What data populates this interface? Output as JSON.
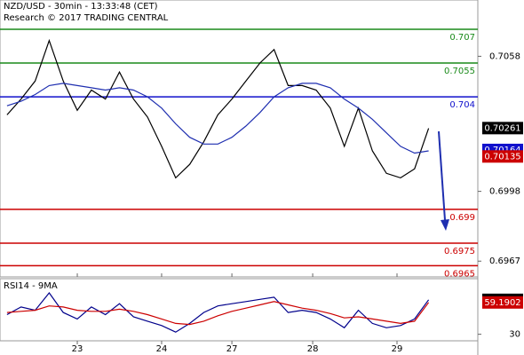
{
  "chart_data": {
    "type": "line",
    "title": "NZD/USD - 30min - 13:33:48 (CET)",
    "subtitle": "Research © 2017 TRADING CENTRAL",
    "xlim": [
      0,
      136
    ],
    "xticks": [
      {
        "value": 22,
        "label": "23"
      },
      {
        "value": 46,
        "label": "24"
      },
      {
        "value": 66,
        "label": "27"
      },
      {
        "value": 89,
        "label": "28"
      },
      {
        "value": 113,
        "label": "29"
      }
    ],
    "x": [
      2,
      6,
      10,
      14,
      18,
      22,
      26,
      30,
      34,
      38,
      42,
      46,
      50,
      54,
      58,
      62,
      66,
      70,
      74,
      78,
      82,
      86,
      90,
      94,
      98,
      102,
      106,
      110,
      114,
      118,
      122
    ],
    "ylim": [
      0.696,
      0.7083
    ],
    "yticks": [
      0.7058,
      0.6998,
      0.6967
    ],
    "series": [
      {
        "color": "#000000",
        "values": [
          0.7032,
          0.7039,
          0.7047,
          0.7065,
          0.7047,
          0.7034,
          0.7043,
          0.7039,
          0.7051,
          0.7039,
          0.7031,
          0.7018,
          0.7004,
          0.701,
          0.702,
          0.7032,
          0.7039,
          0.7047,
          0.7055,
          0.7061,
          0.7045,
          0.7045,
          0.7043,
          0.7035,
          0.7018,
          0.7035,
          0.7016,
          0.7006,
          0.7004,
          0.7008,
          0.7026
        ]
      },
      {
        "color": "#1f2fb0",
        "values": [
          0.7036,
          0.7038,
          0.7041,
          0.7045,
          0.7046,
          0.7045,
          0.7044,
          0.7043,
          0.7044,
          0.7043,
          0.704,
          0.7035,
          0.7028,
          0.7022,
          0.7019,
          0.7019,
          0.7022,
          0.7027,
          0.7033,
          0.704,
          0.7044,
          0.7046,
          0.7046,
          0.7044,
          0.7039,
          0.7035,
          0.703,
          0.7024,
          0.7018,
          0.7015,
          0.7016
        ]
      }
    ],
    "levels": [
      {
        "value": 0.707,
        "color": "#1a8a1a"
      },
      {
        "value": 0.7055,
        "color": "#1a8a1a"
      },
      {
        "value": 0.704,
        "color": "#1010cc"
      },
      {
        "value": 0.699,
        "color": "#cc0000"
      },
      {
        "value": 0.6975,
        "color": "#cc0000"
      },
      {
        "value": 0.6965,
        "color": "#cc0000"
      }
    ],
    "price_labels": [
      {
        "value": 0.70261,
        "color": "#000000"
      },
      {
        "value": 0.70164,
        "color": "#1010cc"
      },
      {
        "value": 0.70135,
        "color": "#cc0000"
      }
    ],
    "indicator": {
      "title": "RSI14 - 9MA",
      "ylim": [
        24,
        81
      ],
      "yticks": [
        30
      ],
      "series": [
        {
          "color": "#00008b",
          "values": [
            48,
            55,
            52,
            68,
            50,
            44,
            55,
            48,
            58,
            46,
            42,
            38,
            32,
            40,
            50,
            56,
            58,
            60,
            62,
            64,
            50,
            52,
            50,
            44,
            36,
            52,
            40,
            36,
            38,
            44,
            61.5906
          ]
        },
        {
          "color": "#cc0000",
          "values": [
            50,
            51,
            52,
            56,
            55,
            52,
            51,
            51,
            53,
            51,
            48,
            44,
            40,
            39,
            42,
            47,
            51,
            54,
            57,
            60,
            57,
            54,
            52,
            49,
            45,
            46,
            44,
            42,
            40,
            42,
            59.1902
          ]
        }
      ],
      "labels": [
        {
          "value": 61.5906,
          "color": "#000000"
        },
        {
          "value": 59.1902,
          "color": "#cc0000"
        }
      ]
    }
  }
}
